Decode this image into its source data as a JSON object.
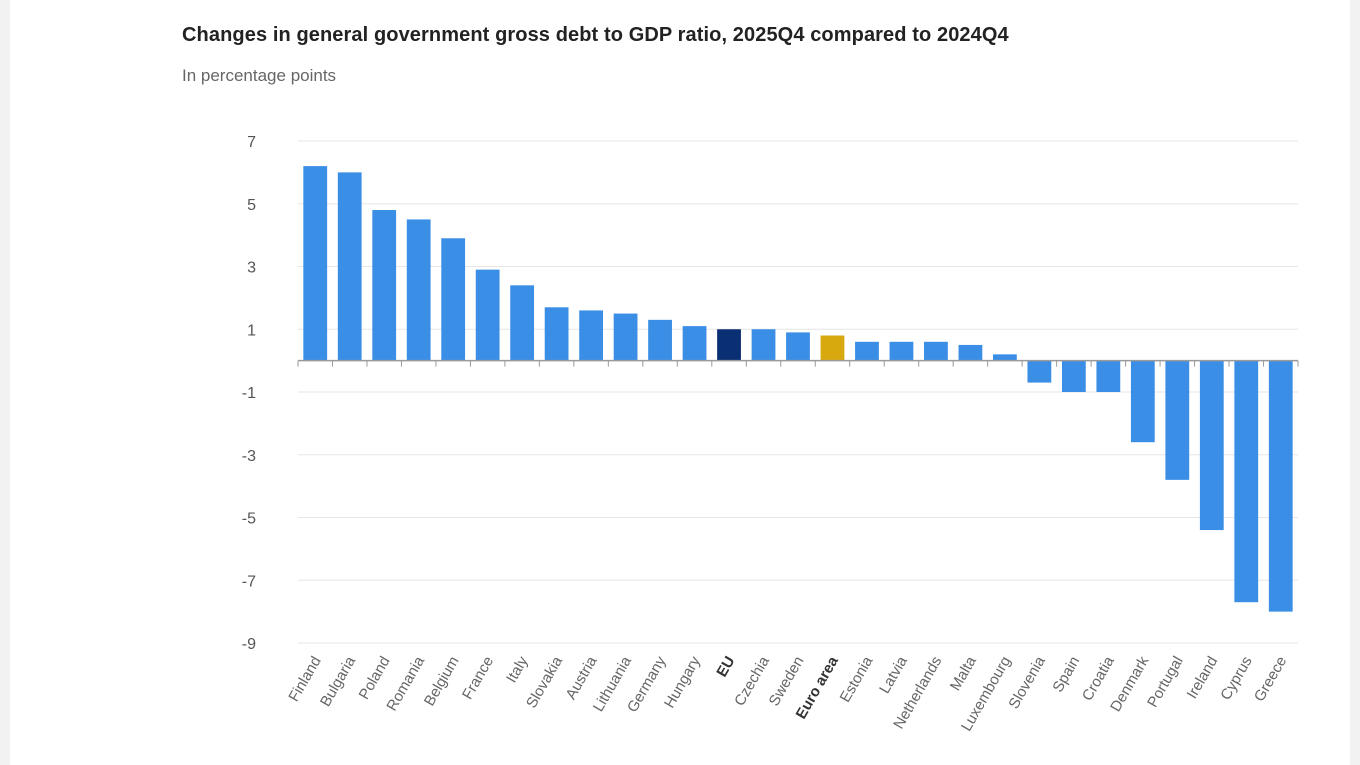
{
  "chart_data": {
    "type": "bar",
    "title": "Changes in general government gross debt to GDP ratio, 2025Q4 compared to 2024Q4",
    "subtitle": "In percentage points",
    "xlabel": "",
    "ylabel": "",
    "ylim": [
      -9,
      7
    ],
    "yticks": [
      7,
      5,
      3,
      1,
      -1,
      -3,
      -5,
      -7,
      -9
    ],
    "grid": true,
    "categories": [
      "Finland",
      "Bulgaria",
      "Poland",
      "Romania",
      "Belgium",
      "France",
      "Italy",
      "Slovakia",
      "Austria",
      "Lithuania",
      "Germany",
      "Hungary",
      "EU",
      "Czechia",
      "Sweden",
      "Euro area",
      "Estonia",
      "Latvia",
      "Netherlands",
      "Malta",
      "Luxembourg",
      "Slovenia",
      "Spain",
      "Croatia",
      "Denmark",
      "Portugal",
      "Ireland",
      "Cyprus",
      "Greece"
    ],
    "values": [
      6.2,
      6.0,
      4.8,
      4.5,
      3.9,
      2.9,
      2.4,
      1.7,
      1.6,
      1.5,
      1.3,
      1.1,
      1.0,
      1.0,
      0.9,
      0.8,
      0.6,
      0.6,
      0.6,
      0.5,
      0.2,
      -0.7,
      -1.0,
      -1.0,
      -2.6,
      -3.8,
      -5.4,
      -7.7,
      -8.0
    ],
    "highlight": {
      "EU": "#0b2f73",
      "Euro area": "#d8a80f"
    },
    "bold_categories": [
      "EU",
      "Euro area"
    ],
    "colors": {
      "bar": "#3a8ee6",
      "grid": "#e6e6e6",
      "baseline": "#9a9a9a"
    }
  }
}
